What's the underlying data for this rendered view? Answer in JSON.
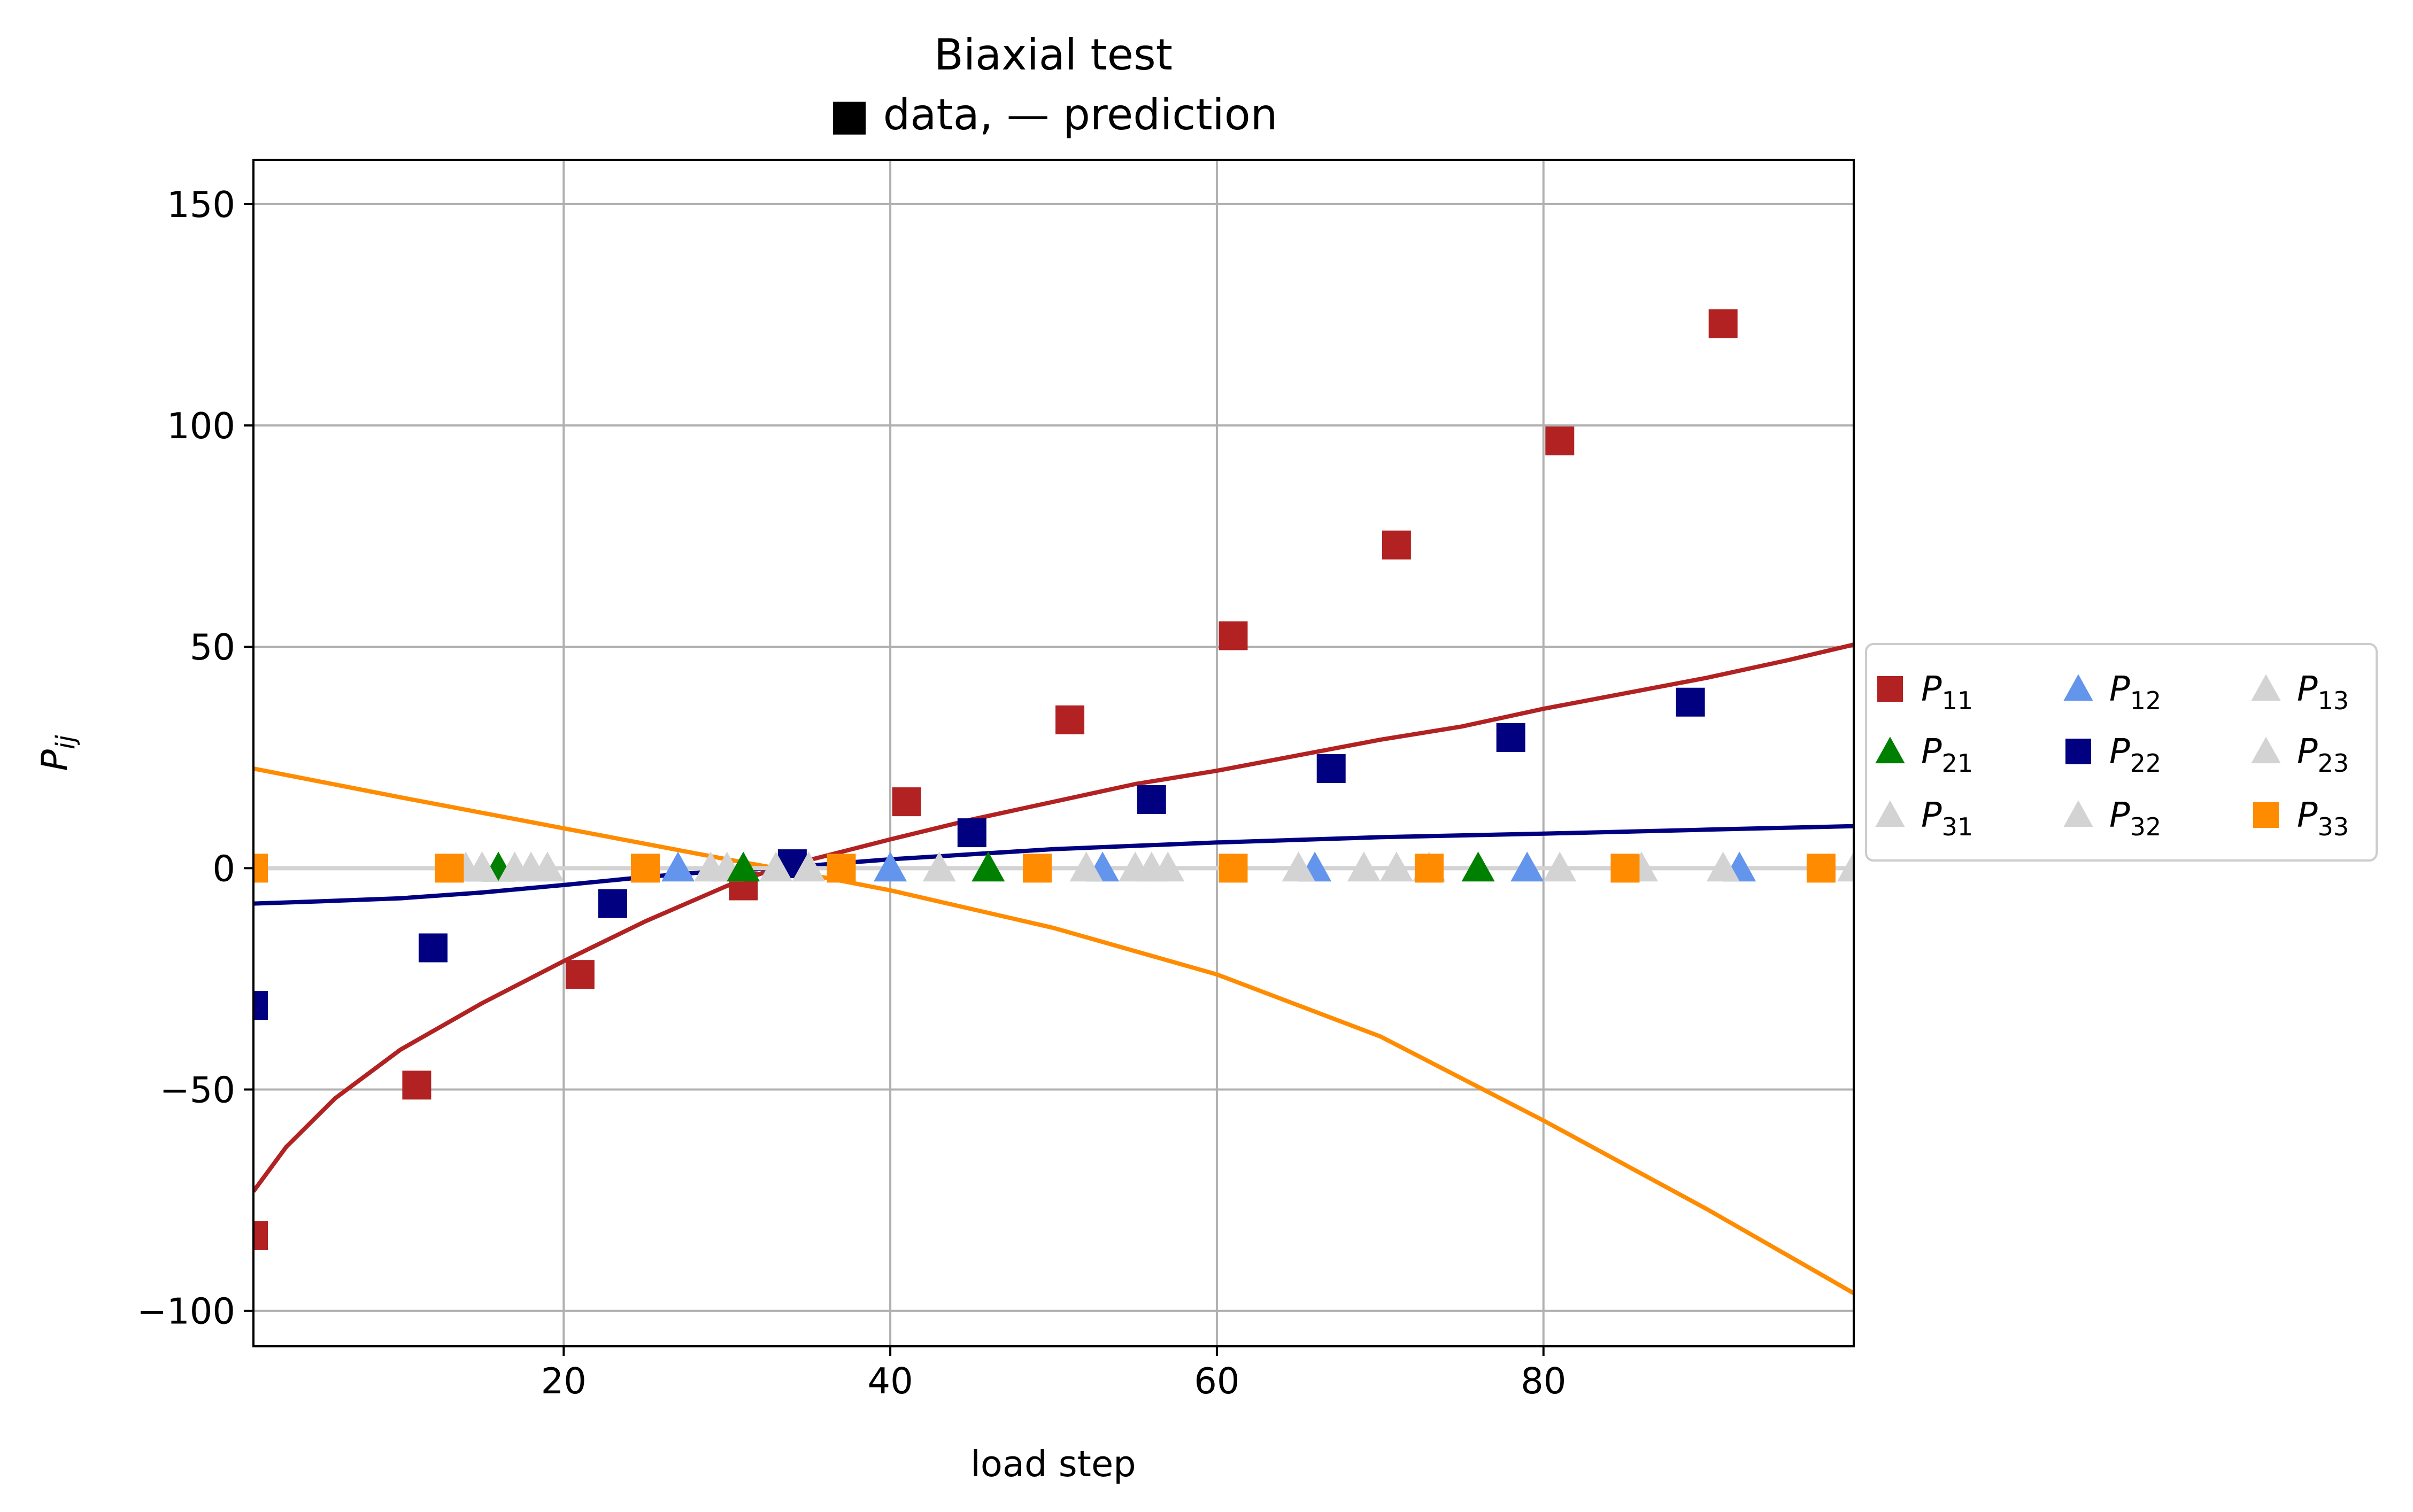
{
  "chart_data": {
    "type": "scatter",
    "title": "Biaxial test",
    "subtitle": "■ data, — prediction",
    "xlabel": "load step",
    "ylabel_base": "P",
    "ylabel_sub": "ij",
    "xlim": [
      1,
      99
    ],
    "ylim": [
      -108,
      160
    ],
    "xticks": [
      20,
      40,
      60,
      80
    ],
    "yticks": [
      -100,
      -50,
      0,
      50,
      100,
      150
    ],
    "xtick_labels": [
      "20",
      "40",
      "60",
      "80"
    ],
    "ytick_labels": [
      "−100",
      "−50",
      "0",
      "50",
      "100",
      "150"
    ],
    "grid": true,
    "legend_position": "center-right-outside",
    "legend_columns": 3,
    "series": [
      {
        "key": "P11",
        "name_base": "P",
        "name_sub": "11",
        "marker": "square",
        "color": "#b22222",
        "x": [
          1,
          11,
          21,
          31,
          41,
          51,
          61,
          71,
          81,
          91
        ],
        "y": [
          -83,
          -49,
          -24,
          -4,
          15,
          33.5,
          52.5,
          73,
          96.5,
          123
        ]
      },
      {
        "key": "P12",
        "name_base": "P",
        "name_sub": "12",
        "marker": "triangle",
        "color": "#6495ed",
        "x": [
          15,
          27,
          40,
          53,
          66,
          79,
          92
        ],
        "y": [
          0,
          0,
          0,
          0,
          0,
          0,
          0
        ]
      },
      {
        "key": "P13",
        "name_base": "P",
        "name_sub": "13",
        "marker": "triangle",
        "color": "#d3d3d3",
        "x": [
          18,
          30,
          43,
          56,
          69,
          81
        ],
        "y": [
          0,
          0,
          0,
          0,
          0,
          0
        ]
      },
      {
        "key": "P21",
        "name_base": "P",
        "name_sub": "21",
        "marker": "triangle",
        "color": "#008000",
        "x": [
          16,
          31,
          46,
          76
        ],
        "y": [
          0,
          0,
          0,
          0
        ]
      },
      {
        "key": "P22",
        "name_base": "P",
        "name_sub": "22",
        "marker": "square",
        "color": "#000080",
        "x": [
          1,
          12,
          23,
          34,
          45,
          56,
          67,
          78,
          89
        ],
        "y": [
          -31,
          -18,
          -8,
          1,
          8,
          15.5,
          22.5,
          29.5,
          37.5
        ]
      },
      {
        "key": "P23",
        "name_base": "P",
        "name_sub": "23",
        "marker": "triangle",
        "color": "#d3d3d3",
        "x": [
          17,
          33,
          52,
          65,
          86
        ],
        "y": [
          0,
          0,
          0,
          0,
          0
        ]
      },
      {
        "key": "P31",
        "name_base": "P",
        "name_sub": "31",
        "marker": "triangle",
        "color": "#d3d3d3",
        "x": [
          14,
          19,
          35,
          55,
          71,
          91,
          99
        ],
        "y": [
          0,
          0,
          0,
          0,
          0,
          0,
          0
        ]
      },
      {
        "key": "P32",
        "name_base": "P",
        "name_sub": "32",
        "marker": "triangle",
        "color": "#d3d3d3",
        "x": [
          15,
          29,
          57,
          73
        ],
        "y": [
          0,
          0,
          0,
          0
        ]
      },
      {
        "key": "P33",
        "name_base": "P",
        "name_sub": "33",
        "marker": "square",
        "color": "#ff8c00",
        "x": [
          1,
          13,
          25,
          37,
          49,
          61,
          73,
          85,
          97
        ],
        "y": [
          0,
          0,
          0,
          0,
          0,
          0,
          0,
          0,
          0
        ]
      }
    ],
    "prediction_lines": [
      {
        "key": "P11-prediction",
        "color": "#b22222",
        "x": [
          1,
          3,
          6,
          10,
          15,
          20,
          25,
          30,
          33,
          35,
          40,
          45,
          50,
          55,
          60,
          65,
          70,
          75,
          80,
          85,
          90,
          95,
          99
        ],
        "y": [
          -73,
          -63,
          -52,
          -41,
          -30.5,
          -21,
          -12,
          -4,
          0,
          1.8,
          6.5,
          11,
          15,
          19,
          22,
          25.5,
          29,
          32,
          36,
          39.5,
          43,
          47,
          50.5
        ]
      },
      {
        "key": "P22-prediction",
        "color": "#000080",
        "x": [
          1,
          5,
          10,
          15,
          20,
          25,
          30,
          33,
          40,
          50,
          60,
          70,
          80,
          90,
          99
        ],
        "y": [
          -8,
          -7.5,
          -6.8,
          -5.5,
          -3.8,
          -2,
          -0.5,
          0,
          2,
          4.3,
          5.8,
          7,
          7.8,
          8.7,
          9.5
        ]
      },
      {
        "key": "P33-prediction",
        "color": "#ff8c00",
        "x": [
          1,
          10,
          20,
          30,
          33,
          40,
          50,
          60,
          70,
          80,
          90,
          99
        ],
        "y": [
          22.5,
          16,
          9,
          2,
          0,
          -5,
          -13.5,
          -24,
          -38,
          -57,
          -77,
          -96
        ]
      },
      {
        "key": "zero-prediction",
        "color": "#d3d3d3",
        "x": [
          1,
          99
        ],
        "y": [
          0,
          0
        ]
      }
    ]
  }
}
